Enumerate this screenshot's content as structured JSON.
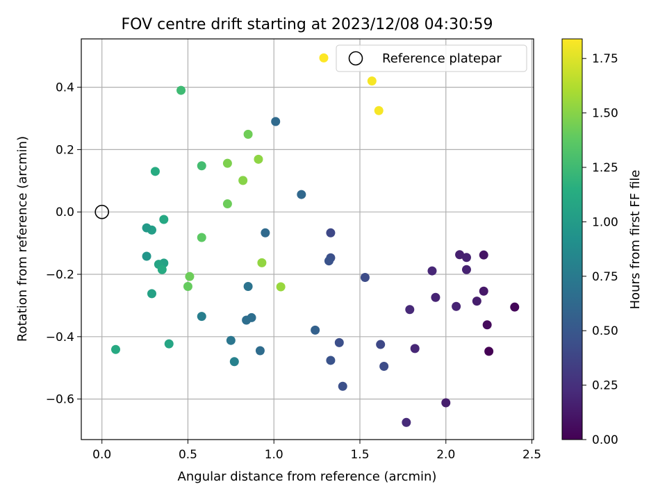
{
  "chart_data": {
    "type": "scatter",
    "title": "FOV centre drift starting at 2023/12/08 04:30:59",
    "xlabel": "Angular distance from reference (arcmin)",
    "ylabel": "Rotation from reference (arcmin)",
    "xlim": [
      -0.12,
      2.51
    ],
    "ylim": [
      -0.73,
      0.555
    ],
    "xticks": [
      0.0,
      0.5,
      1.0,
      1.5,
      2.0,
      2.5
    ],
    "xtick_labels": [
      "0.0",
      "0.5",
      "1.0",
      "1.5",
      "2.0",
      "2.5"
    ],
    "yticks": [
      -0.6,
      -0.4,
      -0.2,
      0.0,
      0.2,
      0.4
    ],
    "ytick_labels": [
      "−0.6",
      "−0.4",
      "−0.2",
      "0.0",
      "0.2",
      "0.4"
    ],
    "grid": true,
    "colormap": "viridis",
    "colorbar": {
      "label": "Hours from first FF file",
      "range": [
        0.0,
        1.84
      ],
      "ticks": [
        0.0,
        0.25,
        0.5,
        0.75,
        1.0,
        1.25,
        1.5,
        1.75
      ],
      "tick_labels": [
        "0.00",
        "0.25",
        "0.50",
        "0.75",
        "1.00",
        "1.25",
        "1.50",
        "1.75"
      ]
    },
    "legend": {
      "position": "top-right",
      "entries": [
        "Reference platepar"
      ]
    },
    "reference_point": {
      "x": 0.0,
      "y": 0.0,
      "label": "Reference platepar"
    },
    "points": [
      {
        "x": 2.25,
        "y": -0.447,
        "hours": 0.0
      },
      {
        "x": 2.4,
        "y": -0.305,
        "hours": 0.03
      },
      {
        "x": 2.24,
        "y": -0.362,
        "hours": 0.05
      },
      {
        "x": 2.22,
        "y": -0.138,
        "hours": 0.1
      },
      {
        "x": 2.22,
        "y": -0.254,
        "hours": 0.12
      },
      {
        "x": 2.18,
        "y": -0.286,
        "hours": 0.15
      },
      {
        "x": 2.12,
        "y": -0.185,
        "hours": 0.17
      },
      {
        "x": 2.12,
        "y": -0.146,
        "hours": 0.17
      },
      {
        "x": 2.08,
        "y": -0.137,
        "hours": 0.16
      },
      {
        "x": 2.06,
        "y": -0.303,
        "hours": 0.18
      },
      {
        "x": 2.0,
        "y": -0.612,
        "hours": 0.15
      },
      {
        "x": 1.94,
        "y": -0.274,
        "hours": 0.18
      },
      {
        "x": 1.92,
        "y": -0.189,
        "hours": 0.2
      },
      {
        "x": 1.82,
        "y": -0.438,
        "hours": 0.2
      },
      {
        "x": 1.79,
        "y": -0.313,
        "hours": 0.21
      },
      {
        "x": 1.77,
        "y": -0.675,
        "hours": 0.22
      },
      {
        "x": 1.64,
        "y": -0.495,
        "hours": 0.42
      },
      {
        "x": 1.62,
        "y": -0.425,
        "hours": 0.4
      },
      {
        "x": 1.53,
        "y": -0.21,
        "hours": 0.42
      },
      {
        "x": 1.4,
        "y": -0.559,
        "hours": 0.45
      },
      {
        "x": 1.38,
        "y": -0.419,
        "hours": 0.44
      },
      {
        "x": 1.33,
        "y": -0.067,
        "hours": 0.4
      },
      {
        "x": 1.33,
        "y": -0.147,
        "hours": 0.45
      },
      {
        "x": 1.32,
        "y": -0.157,
        "hours": 0.47
      },
      {
        "x": 1.33,
        "y": -0.476,
        "hours": 0.47
      },
      {
        "x": 1.24,
        "y": -0.379,
        "hours": 0.57
      },
      {
        "x": 1.16,
        "y": 0.056,
        "hours": 0.62
      },
      {
        "x": 1.01,
        "y": 0.29,
        "hours": 0.63
      },
      {
        "x": 0.95,
        "y": -0.067,
        "hours": 0.63
      },
      {
        "x": 0.92,
        "y": -0.445,
        "hours": 0.65
      },
      {
        "x": 0.87,
        "y": -0.339,
        "hours": 0.66
      },
      {
        "x": 0.84,
        "y": -0.347,
        "hours": 0.66
      },
      {
        "x": 0.85,
        "y": -0.239,
        "hours": 0.7
      },
      {
        "x": 0.75,
        "y": -0.412,
        "hours": 0.72
      },
      {
        "x": 0.77,
        "y": -0.48,
        "hours": 0.8
      },
      {
        "x": 0.58,
        "y": -0.335,
        "hours": 0.78
      },
      {
        "x": 0.39,
        "y": -0.423,
        "hours": 1.08
      },
      {
        "x": 0.36,
        "y": -0.024,
        "hours": 1.1
      },
      {
        "x": 0.36,
        "y": -0.164,
        "hours": 1.05
      },
      {
        "x": 0.33,
        "y": -0.168,
        "hours": 1.07
      },
      {
        "x": 0.35,
        "y": -0.185,
        "hours": 1.12
      },
      {
        "x": 0.29,
        "y": -0.058,
        "hours": 1.02
      },
      {
        "x": 0.26,
        "y": -0.051,
        "hours": 0.99
      },
      {
        "x": 0.26,
        "y": -0.142,
        "hours": 0.96
      },
      {
        "x": 0.29,
        "y": -0.262,
        "hours": 1.05
      },
      {
        "x": 0.31,
        "y": 0.13,
        "hours": 1.13
      },
      {
        "x": 0.08,
        "y": -0.441,
        "hours": 1.11
      },
      {
        "x": 0.58,
        "y": 0.148,
        "hours": 1.27
      },
      {
        "x": 0.46,
        "y": 0.39,
        "hours": 1.25
      },
      {
        "x": 0.5,
        "y": -0.239,
        "hours": 1.4
      },
      {
        "x": 0.51,
        "y": -0.207,
        "hours": 1.42
      },
      {
        "x": 0.58,
        "y": -0.082,
        "hours": 1.37
      },
      {
        "x": 0.73,
        "y": 0.026,
        "hours": 1.42
      },
      {
        "x": 0.73,
        "y": 0.156,
        "hours": 1.47
      },
      {
        "x": 0.82,
        "y": 0.101,
        "hours": 1.5
      },
      {
        "x": 0.85,
        "y": 0.249,
        "hours": 1.43
      },
      {
        "x": 0.91,
        "y": 0.169,
        "hours": 1.52
      },
      {
        "x": 0.93,
        "y": -0.163,
        "hours": 1.53
      },
      {
        "x": 1.04,
        "y": -0.24,
        "hours": 1.55
      },
      {
        "x": 1.29,
        "y": 0.494,
        "hours": 1.84
      },
      {
        "x": 1.57,
        "y": 0.42,
        "hours": 1.82
      },
      {
        "x": 1.61,
        "y": 0.325,
        "hours": 1.82
      }
    ]
  }
}
